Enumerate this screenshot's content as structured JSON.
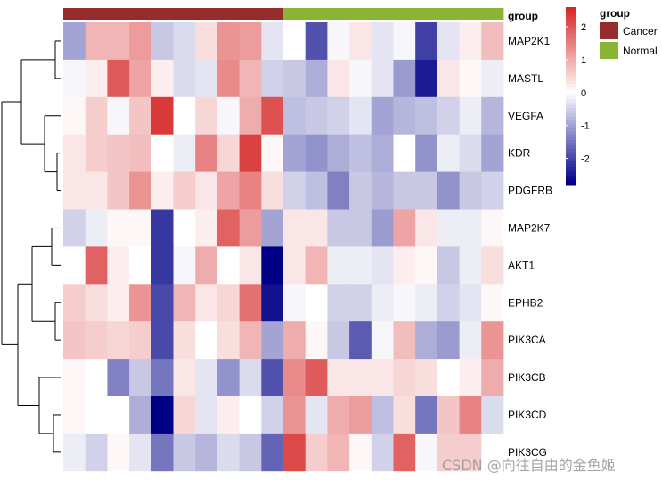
{
  "chart_data": {
    "type": "heatmap",
    "rows": [
      "MAP2K1",
      "MASTL",
      "VEGFA",
      "KDR",
      "PDGFRB",
      "MAP2K7",
      "AKT1",
      "EPHB2",
      "PIK3CA",
      "PIK3CB",
      "PIK3CD",
      "PIK3CG"
    ],
    "column_groups": [
      "Cancer",
      "Cancer",
      "Cancer",
      "Cancer",
      "Cancer",
      "Cancer",
      "Cancer",
      "Cancer",
      "Cancer",
      "Cancer",
      "Normal",
      "Normal",
      "Normal",
      "Normal",
      "Normal",
      "Normal",
      "Normal",
      "Normal",
      "Normal",
      "Normal"
    ],
    "values": [
      [
        -1.0,
        0.9,
        0.9,
        1.2,
        -0.6,
        -0.4,
        0.4,
        1.3,
        1.2,
        -0.3,
        0.0,
        -1.9,
        -0.1,
        0.3,
        -0.3,
        -0.1,
        -2.1,
        -0.3,
        0.2,
        0.8
      ],
      [
        -0.1,
        0.2,
        2.0,
        1.1,
        0.2,
        -0.4,
        -0.3,
        1.4,
        0.9,
        -0.5,
        -0.6,
        -0.9,
        0.3,
        -0.1,
        -0.3,
        -1.1,
        -2.5,
        0.3,
        0.1,
        -0.2
      ],
      [
        0.1,
        0.6,
        -0.1,
        0.7,
        2.4,
        0.0,
        0.5,
        -0.1,
        1.0,
        2.1,
        -0.7,
        -0.6,
        -0.5,
        -0.3,
        -1.0,
        -0.8,
        -0.7,
        -0.5,
        -0.2,
        -0.8
      ],
      [
        0.3,
        0.6,
        0.7,
        0.8,
        0.0,
        -0.2,
        1.5,
        0.5,
        2.3,
        0.1,
        -1.0,
        -1.2,
        -0.9,
        -0.7,
        -0.9,
        0.0,
        -1.2,
        -0.2,
        -0.4,
        -1.0
      ],
      [
        0.3,
        0.3,
        0.7,
        1.3,
        0.2,
        0.6,
        0.3,
        1.1,
        1.5,
        0.4,
        -0.5,
        -0.7,
        -1.4,
        -0.6,
        -0.8,
        -0.6,
        -0.6,
        -1.2,
        -0.6,
        -0.5
      ],
      [
        -0.5,
        -0.2,
        0.1,
        0.1,
        -2.2,
        0.0,
        0.2,
        1.9,
        1.2,
        -1.0,
        0.3,
        0.3,
        -0.6,
        -0.6,
        -1.1,
        1.1,
        0.3,
        -0.2,
        -0.2,
        0.1
      ],
      [
        0.0,
        1.9,
        0.2,
        0.0,
        -2.2,
        -0.1,
        1.0,
        0.0,
        0.3,
        -2.8,
        0.3,
        0.9,
        -0.2,
        -0.2,
        -0.3,
        0.2,
        0.1,
        -0.6,
        -0.2,
        0.4
      ],
      [
        0.6,
        0.4,
        0.2,
        1.3,
        -2.0,
        0.9,
        0.3,
        0.5,
        1.7,
        -2.6,
        -0.1,
        0.0,
        -0.5,
        -0.5,
        -0.2,
        -0.1,
        -0.2,
        -0.5,
        -0.3,
        0.1
      ],
      [
        0.7,
        0.6,
        0.5,
        0.6,
        -2.0,
        0.4,
        0.0,
        0.4,
        0.9,
        -1.0,
        1.0,
        0.1,
        -0.6,
        -1.8,
        -0.1,
        0.8,
        -0.9,
        -1.1,
        -0.2,
        1.3
      ],
      [
        0.1,
        0.0,
        -1.4,
        -0.6,
        -1.5,
        0.3,
        -0.3,
        -1.2,
        -0.4,
        -1.9,
        1.4,
        2.0,
        0.3,
        0.3,
        0.3,
        0.5,
        0.4,
        0.0,
        0.2,
        1.0
      ],
      [
        0.1,
        0.0,
        0.0,
        -0.9,
        -2.8,
        0.5,
        -0.3,
        0.2,
        0.0,
        -0.5,
        1.3,
        -0.3,
        1.0,
        1.2,
        -0.7,
        0.4,
        -1.5,
        0.7,
        1.5,
        -0.4
      ],
      [
        -0.2,
        -0.5,
        0.1,
        -0.3,
        -1.5,
        -0.6,
        -0.8,
        -0.4,
        -0.6,
        -1.7,
        2.2,
        0.6,
        0.9,
        0.1,
        -0.5,
        1.9,
        -0.1,
        0.6,
        0.6,
        0.0
      ]
    ],
    "legend_title": "group",
    "group_legend": [
      {
        "label": "Cancer",
        "color": "#962B2B"
      },
      {
        "label": "Normal",
        "color": "#8AB433"
      }
    ],
    "annotation_label": "group",
    "colorbar_ticks": [
      2,
      1,
      0,
      -1,
      -2
    ],
    "color_scale": {
      "min": -2.8,
      "max": 2.6,
      "low": "#000087",
      "mid": "#ffffff",
      "high": "#D62828"
    }
  },
  "watermark": "CSDN @向往自由的金鱼姬"
}
